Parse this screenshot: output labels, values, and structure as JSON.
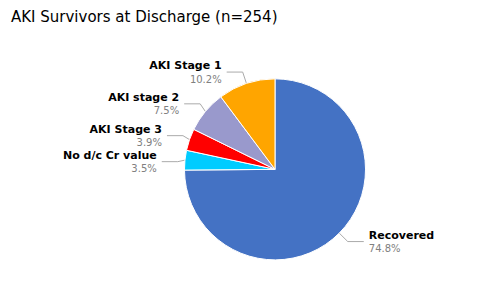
{
  "chart_data": {
    "type": "pie",
    "title": "AKI Survivors at Discharge (n=254)",
    "categories": [
      "Recovered",
      "No d/c Cr value",
      "AKI Stage 3",
      "AKI stage 2",
      "AKI Stage 1"
    ],
    "values": [
      74.8,
      3.5,
      3.9,
      7.5,
      10.2
    ],
    "value_labels": [
      "74.8%",
      "3.5%",
      "3.9%",
      "7.5%",
      "10.2%"
    ],
    "colors": [
      "#4472C4",
      "#00CCFF",
      "#FF0000",
      "#9999CC",
      "#FFA500"
    ],
    "data_labels": true
  }
}
